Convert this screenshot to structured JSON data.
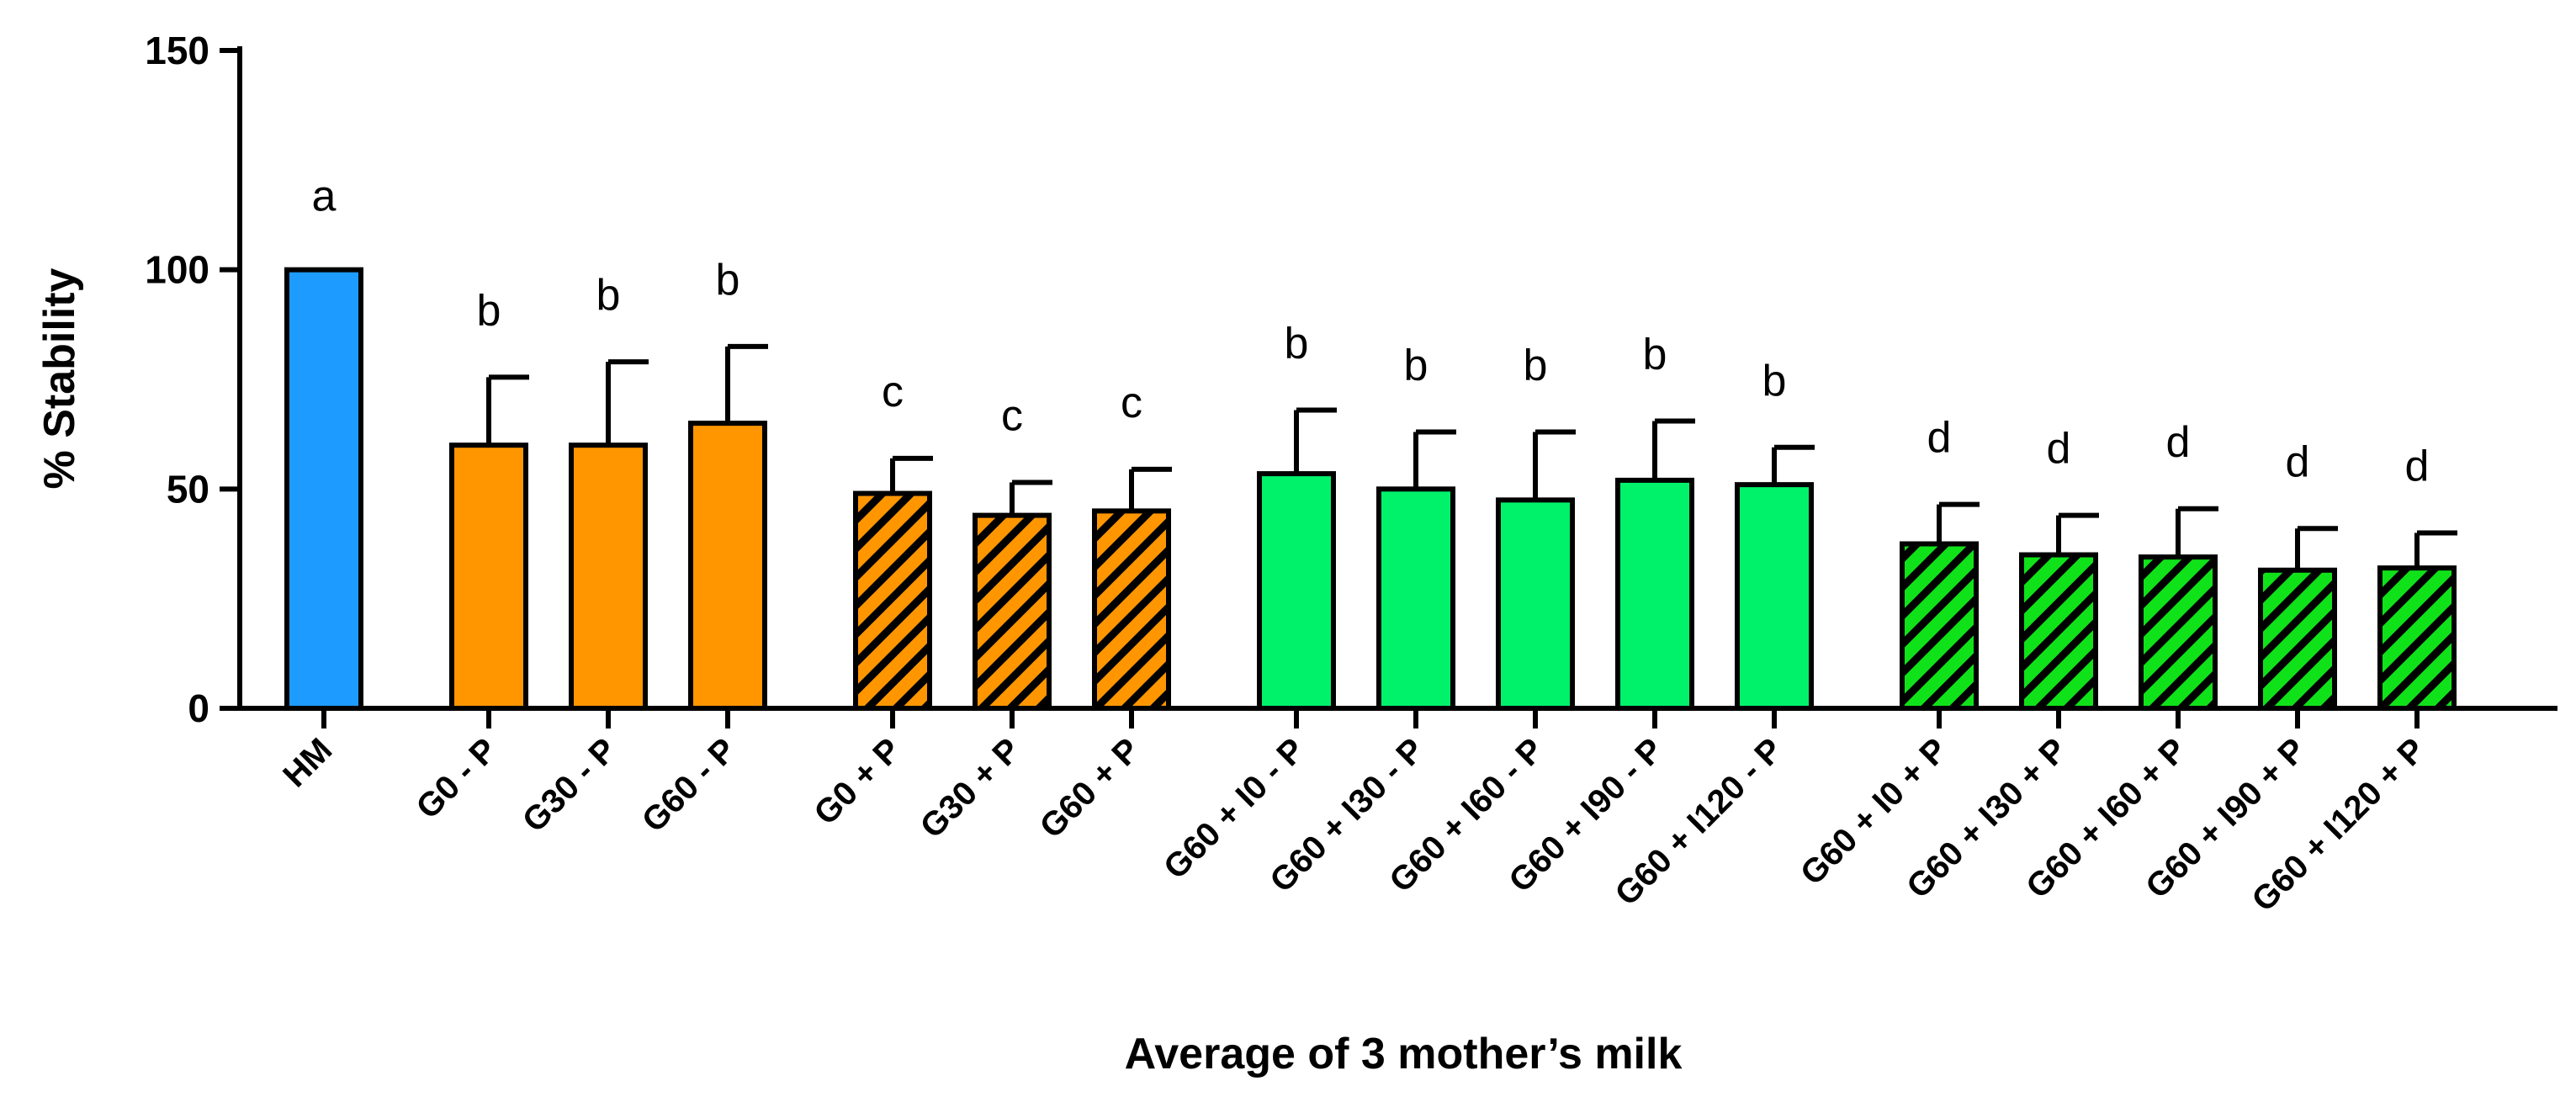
{
  "chart_data": {
    "type": "bar",
    "title": "",
    "xlabel": "Average of 3 mother’s milk",
    "ylabel": "% Stability",
    "ylim": [
      0,
      150
    ],
    "yticks": [
      0,
      50,
      100,
      150
    ],
    "ytick_labels": [
      "0",
      "50",
      "100",
      "150"
    ],
    "grid": false,
    "legend": "none",
    "colors": {
      "blue": "#1E9BFF",
      "orange": "#FF9600",
      "green": "#00F26B",
      "green_hatched": "#10E21A",
      "outline": "#000000"
    },
    "bars": [
      {
        "label": "HM",
        "value": 100,
        "error": 0,
        "sig": "a",
        "color": "blue",
        "hatched": false,
        "group": 0
      },
      {
        "label": "G0 - P",
        "value": 60,
        "error": 15.5,
        "sig": "b",
        "color": "orange",
        "hatched": false,
        "group": 1
      },
      {
        "label": "G30 - P",
        "value": 60,
        "error": 19,
        "sig": "b",
        "color": "orange",
        "hatched": false,
        "group": 1
      },
      {
        "label": "G60 - P",
        "value": 65,
        "error": 17.5,
        "sig": "b",
        "color": "orange",
        "hatched": false,
        "group": 1
      },
      {
        "label": "G0 + P",
        "value": 49,
        "error": 8,
        "sig": "c",
        "color": "orange",
        "hatched": true,
        "group": 2
      },
      {
        "label": "G30 + P",
        "value": 44,
        "error": 7.5,
        "sig": "c",
        "color": "orange",
        "hatched": true,
        "group": 2
      },
      {
        "label": "G60 + P",
        "value": 45,
        "error": 9.5,
        "sig": "c",
        "color": "orange",
        "hatched": true,
        "group": 2
      },
      {
        "label": "G60 + I0 - P",
        "value": 53.5,
        "error": 14.5,
        "sig": "b",
        "color": "green",
        "hatched": false,
        "group": 3
      },
      {
        "label": "G60 + I30 - P",
        "value": 50,
        "error": 13,
        "sig": "b",
        "color": "green",
        "hatched": false,
        "group": 3
      },
      {
        "label": "G60 + I60 - P",
        "value": 47.5,
        "error": 15.5,
        "sig": "b",
        "color": "green",
        "hatched": false,
        "group": 3
      },
      {
        "label": "G60 + I90 - P",
        "value": 52,
        "error": 13.5,
        "sig": "b",
        "color": "green",
        "hatched": false,
        "group": 3
      },
      {
        "label": "G60 + I120 - P",
        "value": 51,
        "error": 8.5,
        "sig": "b",
        "color": "green",
        "hatched": false,
        "group": 3
      },
      {
        "label": "G60 + I0 + P",
        "value": 37.5,
        "error": 9,
        "sig": "d",
        "color": "green_hatched",
        "hatched": true,
        "group": 4
      },
      {
        "label": "G60 + I30 + P",
        "value": 35,
        "error": 9,
        "sig": "d",
        "color": "green_hatched",
        "hatched": true,
        "group": 4
      },
      {
        "label": "G60 + I60 + P",
        "value": 34.5,
        "error": 11,
        "sig": "d",
        "color": "green_hatched",
        "hatched": true,
        "group": 4
      },
      {
        "label": "G60 + I90 + P",
        "value": 31.5,
        "error": 9.5,
        "sig": "d",
        "color": "green_hatched",
        "hatched": true,
        "group": 4
      },
      {
        "label": "G60 + I120 + P",
        "value": 32,
        "error": 8,
        "sig": "d",
        "color": "green_hatched",
        "hatched": true,
        "group": 4
      }
    ]
  }
}
